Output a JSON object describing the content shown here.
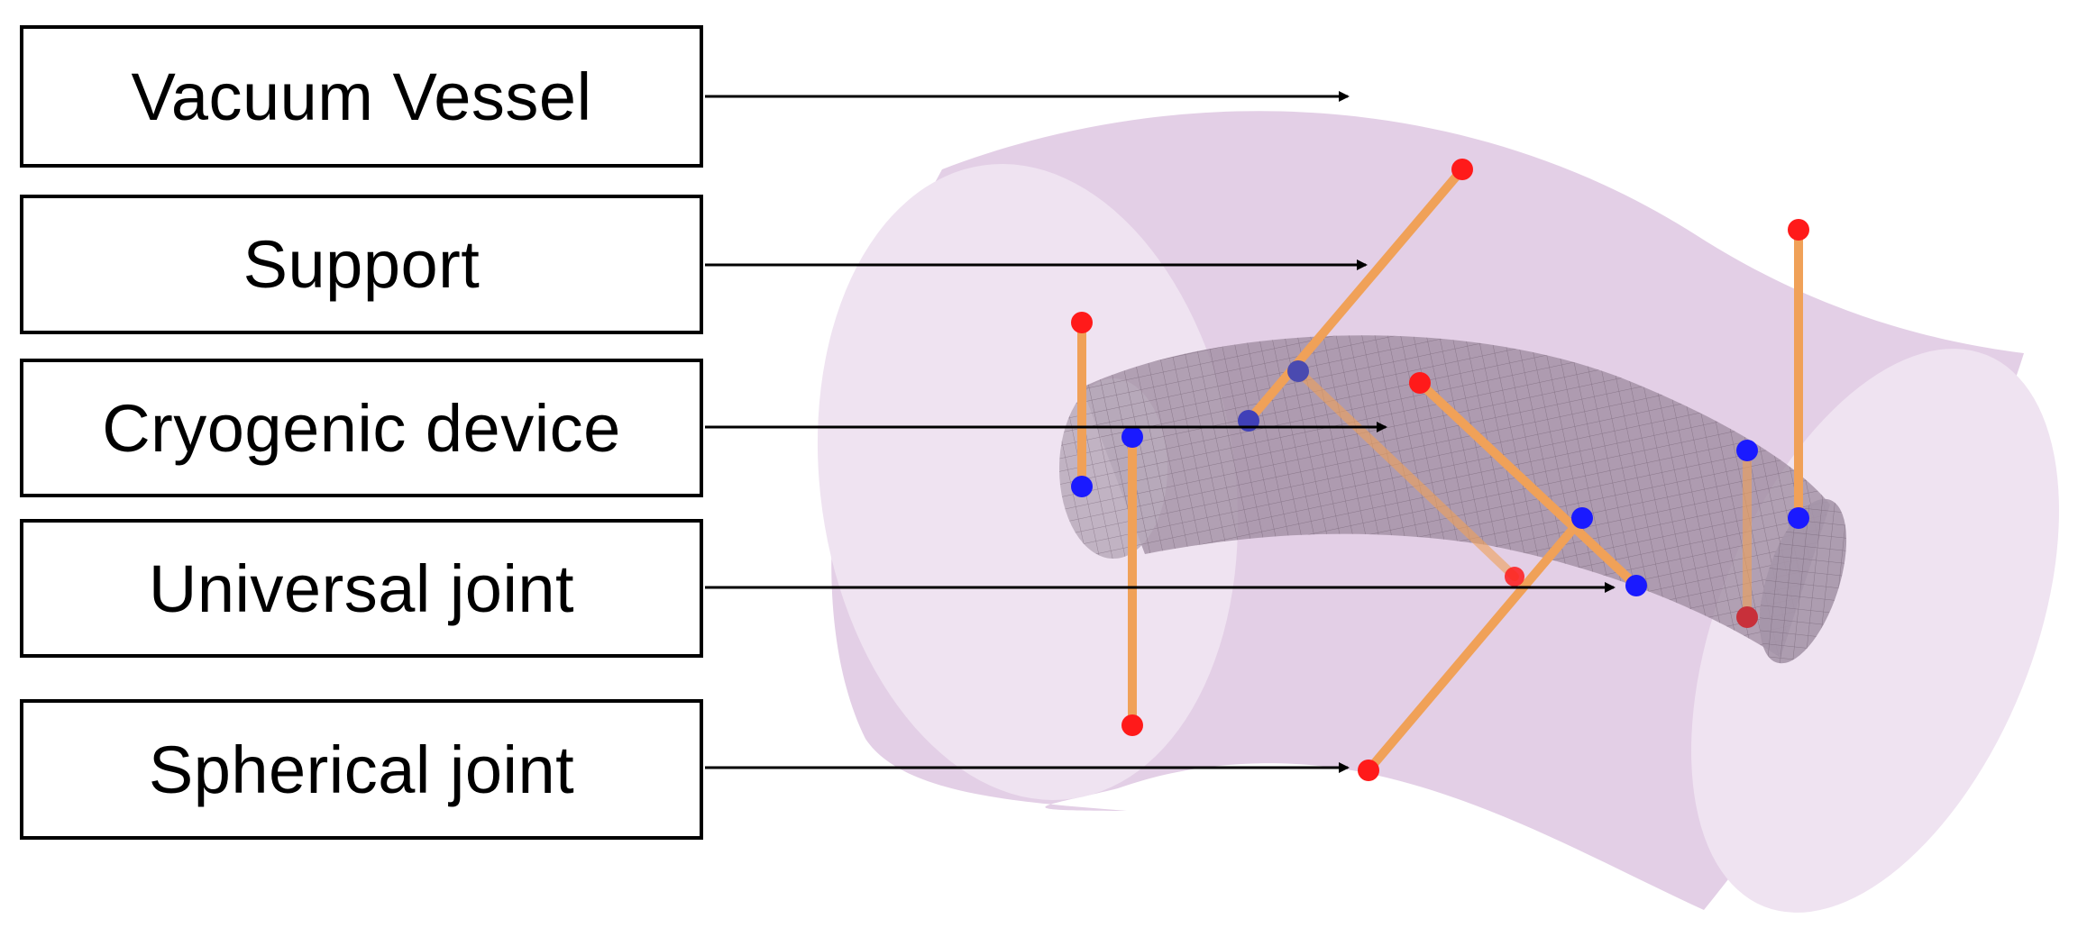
{
  "labels": {
    "vacuum_vessel": "Vacuum Vessel",
    "support": "Support",
    "cryogenic_device": "Cryogenic device",
    "universal_joint": "Universal joint",
    "spherical_joint": "Spherical joint"
  },
  "colors": {
    "vessel_fill": "#e6d3e8",
    "vessel_end_cap": "#f0e4f1",
    "cryo_body": "#9c8a9e",
    "support_rod": "#f0a158",
    "spherical_joint": "#ff1a1a",
    "universal_joint": "#1a1aff",
    "arrow": "#000000"
  }
}
